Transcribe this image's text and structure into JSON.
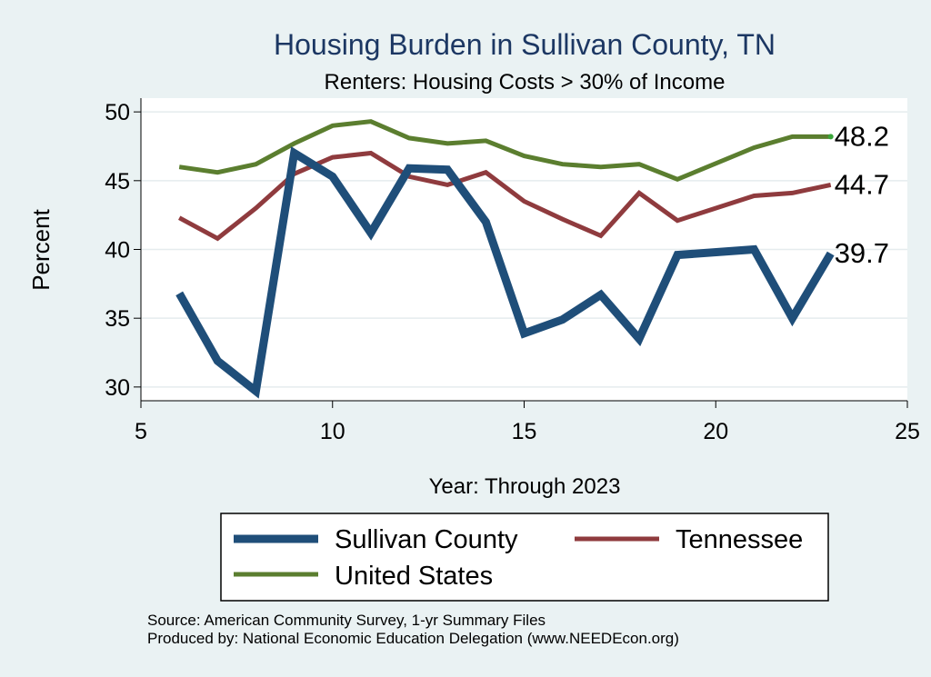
{
  "chart_data": {
    "type": "line",
    "title": "Housing Burden in Sullivan County, TN",
    "subtitle": "Renters: Housing Costs > 30% of Income",
    "xlabel": "Year: Through 2023",
    "ylabel": "Percent",
    "xlim": [
      5,
      25
    ],
    "ylim": [
      29,
      51
    ],
    "xticks": [
      5,
      10,
      15,
      20,
      25
    ],
    "yticks": [
      30,
      35,
      40,
      45,
      50
    ],
    "grid": true,
    "legend_position": "bottom",
    "series": [
      {
        "name": "Sullivan County",
        "color": "#1f4e79",
        "x": [
          6,
          7,
          8,
          9,
          10,
          11,
          12,
          13,
          14,
          15,
          16,
          17,
          18,
          19,
          21,
          22,
          23
        ],
        "values": [
          36.8,
          31.9,
          29.7,
          47.0,
          45.3,
          41.2,
          45.9,
          45.8,
          42.0,
          33.9,
          34.9,
          36.7,
          33.5,
          39.6,
          40.0,
          35.0,
          39.7
        ],
        "end_label": "39.7"
      },
      {
        "name": "Tennessee",
        "color": "#8f3b3e",
        "x": [
          6,
          7,
          8,
          9,
          10,
          11,
          12,
          13,
          14,
          15,
          16,
          17,
          18,
          19,
          21,
          22,
          23
        ],
        "values": [
          42.3,
          40.8,
          43.0,
          45.5,
          46.7,
          47.0,
          45.3,
          44.7,
          45.6,
          43.5,
          42.2,
          41.0,
          44.1,
          42.1,
          43.9,
          44.1,
          44.7
        ],
        "end_label": "44.7"
      },
      {
        "name": "United States",
        "color": "#5b7e2f",
        "x": [
          6,
          7,
          8,
          9,
          10,
          11,
          12,
          13,
          14,
          15,
          16,
          17,
          18,
          19,
          21,
          22,
          23
        ],
        "values": [
          46.0,
          45.6,
          46.2,
          47.7,
          49.0,
          49.3,
          48.1,
          47.7,
          47.9,
          46.8,
          46.2,
          46.0,
          46.2,
          45.1,
          47.4,
          48.2,
          48.2
        ],
        "end_label": "48.2"
      }
    ],
    "legend": [
      "Sullivan County",
      "Tennessee",
      "United States"
    ]
  },
  "source": {
    "line1": "Source: American Community Survey, 1-yr Summary Files",
    "line2": "Produced by: National Economic Education Delegation (www.NEEDEcon.org)"
  }
}
